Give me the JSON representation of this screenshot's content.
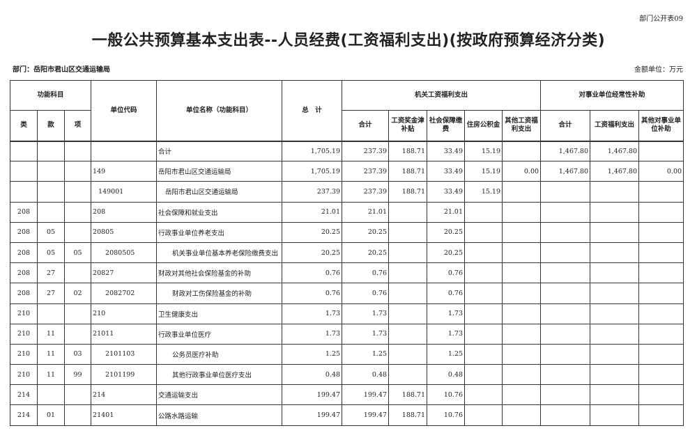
{
  "form_no": "部门公开表09",
  "title": "一般公共预算基本支出表--人员经费(工资福利支出)(按政府预算经济分类)",
  "department": "部门：岳阳市君山区交通运输局",
  "unit": "金额单位：万元",
  "header": {
    "func_subject": "功能科目",
    "lei": "类",
    "kuan": "款",
    "xiang": "项",
    "unit_code": "单位代码",
    "unit_name": "单位名称（功能科目）",
    "total": "总　计",
    "group_jiguan": "机关工资福利支出",
    "group_shiye": "对事业单位经常性补助",
    "jg_subtotal": "合计",
    "jg_wage": "工资奖金津补贴",
    "jg_social": "社会保障缴费",
    "jg_housing": "住房公积金",
    "jg_other": "其他工资福利支出",
    "sy_subtotal": "合计",
    "sy_wage": "工资福利支出",
    "sy_other": "其他对事业单位补助"
  },
  "rows": [
    {
      "lei": "",
      "kuan": "",
      "xiang": "",
      "code": "",
      "name": "合计",
      "total": "1,705.19",
      "jg_subtotal": "237.39",
      "jg_wage": "188.71",
      "jg_social": "33.49",
      "jg_housing": "15.19",
      "jg_other": "",
      "sy_subtotal": "1,467.80",
      "sy_wage": "1,467.80",
      "sy_other": ""
    },
    {
      "lei": "",
      "kuan": "",
      "xiang": "",
      "code": "149",
      "name": "岳阳市君山区交通运输局",
      "total": "1,705.19",
      "jg_subtotal": "237.39",
      "jg_wage": "188.71",
      "jg_social": "33.49",
      "jg_housing": "15.19",
      "jg_other": "0.00",
      "sy_subtotal": "1,467.80",
      "sy_wage": "1,467.80",
      "sy_other": "0.00"
    },
    {
      "lei": "",
      "kuan": "",
      "xiang": "",
      "code": "149001",
      "name": "岳阳市君山区交通运输局",
      "total": "237.39",
      "jg_subtotal": "237.39",
      "jg_wage": "188.71",
      "jg_social": "33.49",
      "jg_housing": "15.19",
      "jg_other": "",
      "sy_subtotal": "",
      "sy_wage": "",
      "sy_other": ""
    },
    {
      "lei": "208",
      "kuan": "",
      "xiang": "",
      "code": "208",
      "name": "社会保障和就业支出",
      "total": "21.01",
      "jg_subtotal": "21.01",
      "jg_wage": "",
      "jg_social": "21.01",
      "jg_housing": "",
      "jg_other": "",
      "sy_subtotal": "",
      "sy_wage": "",
      "sy_other": ""
    },
    {
      "lei": "208",
      "kuan": "05",
      "xiang": "",
      "code": "20805",
      "name": "行政事业单位养老支出",
      "total": "20.25",
      "jg_subtotal": "20.25",
      "jg_wage": "",
      "jg_social": "20.25",
      "jg_housing": "",
      "jg_other": "",
      "sy_subtotal": "",
      "sy_wage": "",
      "sy_other": ""
    },
    {
      "lei": "208",
      "kuan": "05",
      "xiang": "05",
      "code": "2080505",
      "name": "机关事业单位基本养老保险缴费支出",
      "total": "20.25",
      "jg_subtotal": "20.25",
      "jg_wage": "",
      "jg_social": "20.25",
      "jg_housing": "",
      "jg_other": "",
      "sy_subtotal": "",
      "sy_wage": "",
      "sy_other": ""
    },
    {
      "lei": "208",
      "kuan": "27",
      "xiang": "",
      "code": "20827",
      "name": "财政对其他社会保险基金的补助",
      "total": "0.76",
      "jg_subtotal": "0.76",
      "jg_wage": "",
      "jg_social": "0.76",
      "jg_housing": "",
      "jg_other": "",
      "sy_subtotal": "",
      "sy_wage": "",
      "sy_other": ""
    },
    {
      "lei": "208",
      "kuan": "27",
      "xiang": "02",
      "code": "2082702",
      "name": "财政对工伤保险基金的补助",
      "total": "0.76",
      "jg_subtotal": "0.76",
      "jg_wage": "",
      "jg_social": "0.76",
      "jg_housing": "",
      "jg_other": "",
      "sy_subtotal": "",
      "sy_wage": "",
      "sy_other": ""
    },
    {
      "lei": "210",
      "kuan": "",
      "xiang": "",
      "code": "210",
      "name": "卫生健康支出",
      "total": "1.73",
      "jg_subtotal": "1.73",
      "jg_wage": "",
      "jg_social": "1.73",
      "jg_housing": "",
      "jg_other": "",
      "sy_subtotal": "",
      "sy_wage": "",
      "sy_other": ""
    },
    {
      "lei": "210",
      "kuan": "11",
      "xiang": "",
      "code": "21011",
      "name": "行政事业单位医疗",
      "total": "1.73",
      "jg_subtotal": "1.73",
      "jg_wage": "",
      "jg_social": "1.73",
      "jg_housing": "",
      "jg_other": "",
      "sy_subtotal": "",
      "sy_wage": "",
      "sy_other": ""
    },
    {
      "lei": "210",
      "kuan": "11",
      "xiang": "03",
      "code": "2101103",
      "name": "公务员医疗补助",
      "total": "1.25",
      "jg_subtotal": "1.25",
      "jg_wage": "",
      "jg_social": "1.25",
      "jg_housing": "",
      "jg_other": "",
      "sy_subtotal": "",
      "sy_wage": "",
      "sy_other": ""
    },
    {
      "lei": "210",
      "kuan": "11",
      "xiang": "99",
      "code": "2101199",
      "name": "其他行政事业单位医疗支出",
      "total": "0.48",
      "jg_subtotal": "0.48",
      "jg_wage": "",
      "jg_social": "0.48",
      "jg_housing": "",
      "jg_other": "",
      "sy_subtotal": "",
      "sy_wage": "",
      "sy_other": ""
    },
    {
      "lei": "214",
      "kuan": "",
      "xiang": "",
      "code": "214",
      "name": "交通运输支出",
      "total": "199.47",
      "jg_subtotal": "199.47",
      "jg_wage": "188.71",
      "jg_social": "10.76",
      "jg_housing": "",
      "jg_other": "",
      "sy_subtotal": "",
      "sy_wage": "",
      "sy_other": ""
    },
    {
      "lei": "214",
      "kuan": "01",
      "xiang": "",
      "code": "21401",
      "name": "公路水路运输",
      "total": "199.47",
      "jg_subtotal": "199.47",
      "jg_wage": "188.71",
      "jg_social": "10.76",
      "jg_housing": "",
      "jg_other": "",
      "sy_subtotal": "",
      "sy_wage": "",
      "sy_other": ""
    }
  ]
}
